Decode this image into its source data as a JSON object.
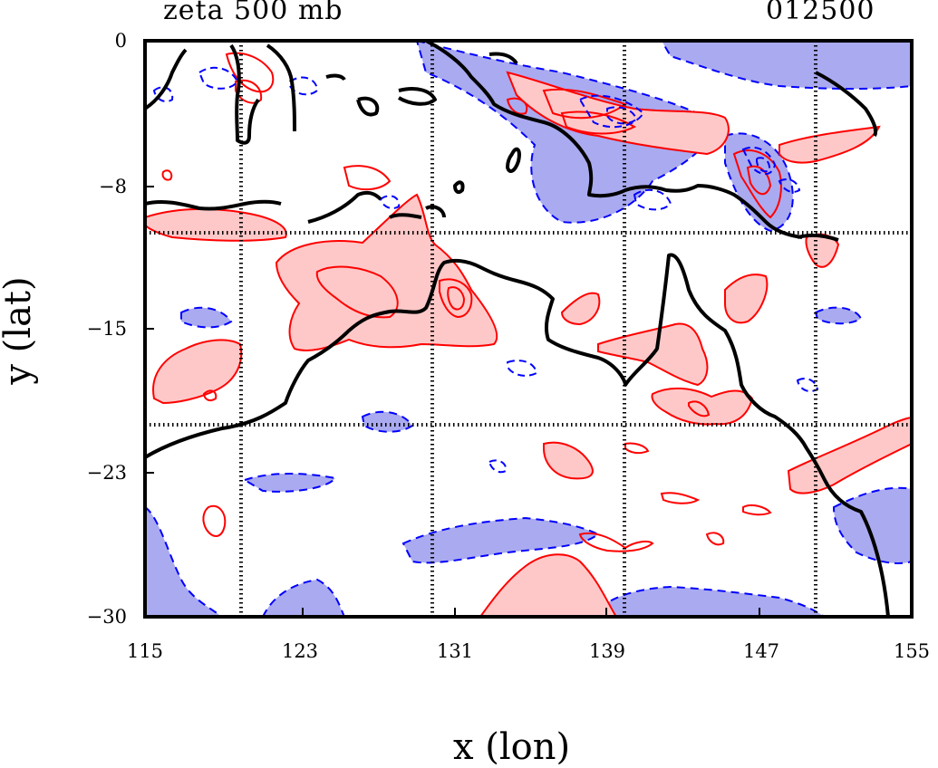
{
  "title_left": "zeta 500 mb",
  "title_right": "012500",
  "x_axis": {
    "label": "x (lon)",
    "ticks": [
      "115",
      "123",
      "131",
      "139",
      "147",
      "155"
    ]
  },
  "y_axis": {
    "label": "y (lat)",
    "ticks": [
      "0",
      "−8",
      "−15",
      "−23",
      "−30"
    ]
  },
  "colors": {
    "positive_fill": "#ffc8c8",
    "positive_line": "#ff0000",
    "negative_fill": "#aaaaf0",
    "negative_line": "#0000ff",
    "coastline": "#000000",
    "grid": "#000000"
  },
  "map": {
    "lon_range": [
      115,
      155
    ],
    "lat_range": [
      -30,
      0
    ],
    "grid_lon": [
      120,
      130,
      140,
      150
    ],
    "grid_lat": [
      -10,
      -20
    ],
    "grid_style": "dotted black"
  }
}
